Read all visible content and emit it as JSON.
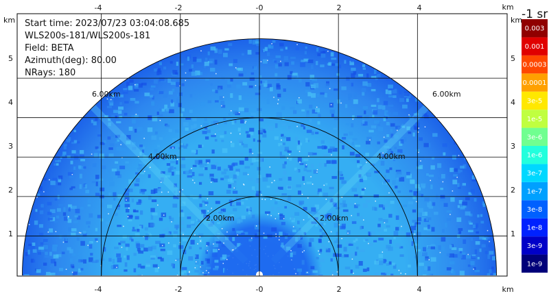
{
  "chart_data": {
    "type": "heatmap",
    "info": {
      "start_time": "Start time: 2023/07/23 03:04:08.685",
      "instrument": "WLS200s-181/WLS200s-181",
      "field": "Field: BETA",
      "azimuth": "Azimuth(deg): 80.00",
      "nrays": "NRays: 180"
    },
    "x_unit": "km",
    "y_unit": "km",
    "xlim": [
      -6.2,
      6.2
    ],
    "ylim": [
      0,
      6
    ],
    "x_ticks": [
      -4,
      -2,
      0,
      2,
      4
    ],
    "x_tick_labels": [
      "-4",
      "-2",
      "-0",
      "2",
      "4"
    ],
    "y_ticks": [
      1,
      2,
      3,
      4,
      5
    ],
    "y_tick_labels": [
      "1",
      "2",
      "3",
      "4",
      "5"
    ],
    "range_rings_km": [
      2,
      4,
      6
    ],
    "range_ring_labels": [
      "2.00km",
      "4.00km",
      "6.00km"
    ],
    "max_range_km": 6,
    "grid": true,
    "colorbar": {
      "title": "-1 sr",
      "labels": [
        "1e-9",
        "3e-9",
        "1e-8",
        "3e-8",
        "1e-7",
        "3e-7",
        "1e-6",
        "3e-6",
        "1e-5",
        "3e-5",
        "0.0001",
        "0.0003",
        "0.001",
        "0.003"
      ],
      "colors": [
        "#00007a",
        "#0000c8",
        "#0022ff",
        "#0060ff",
        "#00a0ff",
        "#00d8ff",
        "#22ffdd",
        "#70ff90",
        "#c0ff40",
        "#ffe800",
        "#ffa000",
        "#ff4800",
        "#e00000",
        "#900000"
      ]
    },
    "field_colors": {
      "near": "#1e6cf0",
      "mid": "#35aef3",
      "far": "#2d86ef",
      "edge": "#1a5ee8",
      "speckle": "#ffffff"
    }
  }
}
